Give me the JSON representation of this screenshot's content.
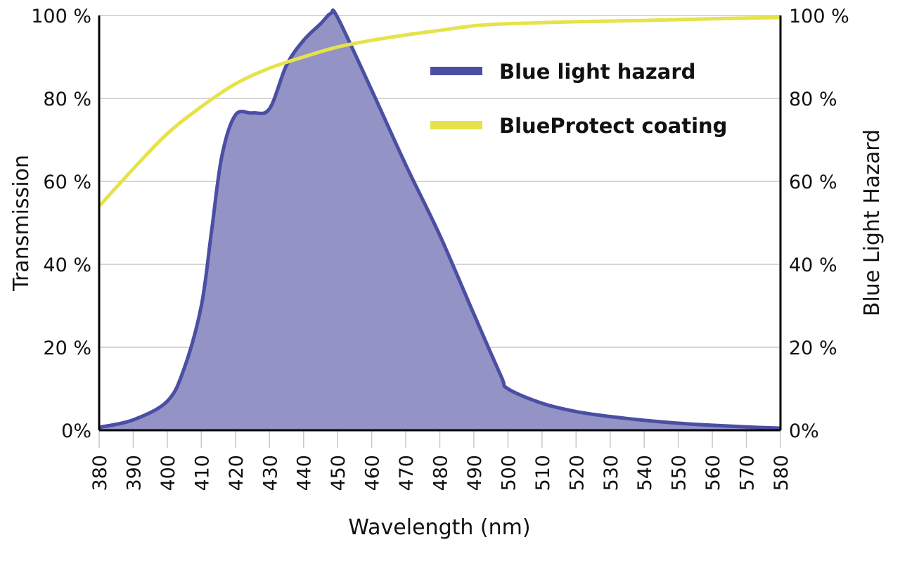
{
  "chart_data": {
    "type": "area",
    "xlabel": "Wavelength (nm)",
    "ylabel_left": "Transmission",
    "ylabel_right": "Blue Light Hazard",
    "xlim": [
      380,
      580
    ],
    "ylim": [
      0,
      100
    ],
    "xticks": [
      "380",
      "390",
      "400",
      "410",
      "420",
      "430",
      "440",
      "450",
      "460",
      "470",
      "480",
      "490",
      "500",
      "510",
      "520",
      "530",
      "540",
      "550",
      "560",
      "570",
      "580"
    ],
    "yticks_left": [
      "0%",
      "20 %",
      "40 %",
      "60 %",
      "80 %",
      "100 %"
    ],
    "yticks_right": [
      "0%",
      "20 %",
      "40 %",
      "60 %",
      "80 %",
      "100 %"
    ],
    "grid": "horizontal",
    "legend_placement": "top-right",
    "series": [
      {
        "name": "Blue light hazard",
        "color": "#4b4fa3",
        "fill": "#9393c6",
        "x": [
          380,
          390,
          400,
          405,
          410,
          413,
          416,
          420,
          425,
          430,
          435,
          440,
          445,
          448,
          450,
          460,
          470,
          480,
          490,
          498,
          500,
          510,
          520,
          530,
          540,
          550,
          560,
          570,
          580
        ],
        "y": [
          0.7,
          2.5,
          7,
          15,
          30,
          48,
          66,
          76,
          76.5,
          77.5,
          88,
          94,
          98,
          100.5,
          99.5,
          82,
          64,
          47,
          28,
          13,
          10,
          6.5,
          4.5,
          3.3,
          2.4,
          1.7,
          1.2,
          0.8,
          0.5
        ]
      },
      {
        "name": "BlueProtect coating",
        "color": "#e6e34a",
        "x": [
          380,
          390,
          400,
          410,
          420,
          430,
          440,
          450,
          460,
          470,
          480,
          490,
          500,
          520,
          540,
          560,
          580
        ],
        "y": [
          54,
          63,
          71.5,
          78,
          83.5,
          87.3,
          90,
          92.4,
          94,
          95.3,
          96.4,
          97.5,
          98,
          98.5,
          98.8,
          99.2,
          99.5
        ]
      }
    ]
  }
}
